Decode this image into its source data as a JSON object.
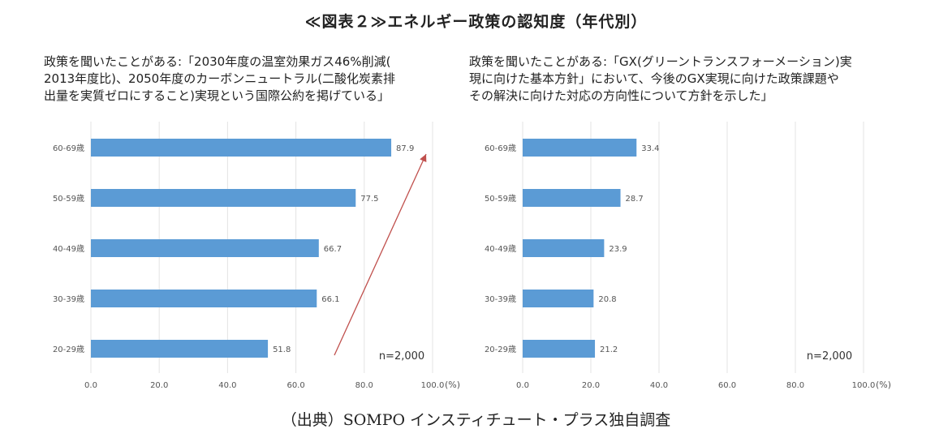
{
  "figure_title": "≪図表２≫エネルギー政策の認知度（年代別）",
  "source": "（出典）SOMPO インスティチュート・プラス独自調査",
  "colors": {
    "bar": "#5b9bd5",
    "grid": "#e3e3e3",
    "axis_text": "#555555",
    "arrow": "#c0504d"
  },
  "chart_data": [
    {
      "type": "bar",
      "orientation": "horizontal",
      "title": "政策を聞いたことがある:「2030年度の温室効果ガス46%削減(\n2013年度比)、2050年度のカーボンニュートラル(二酸化炭素排\n出量を実質ゼロにすること)実現という国際公約を掲げている」",
      "categories": [
        "60-69歳",
        "50-59歳",
        "40-49歳",
        "30-39歳",
        "20-29歳"
      ],
      "values": [
        87.9,
        77.5,
        66.7,
        66.1,
        51.8
      ],
      "value_labels": [
        "87.9",
        "77.5",
        "66.7",
        "66.1",
        "51.8"
      ],
      "xlim": [
        0,
        100
      ],
      "xticks": [
        0,
        20,
        40,
        60,
        80,
        100
      ],
      "xtick_labels": [
        "0.0",
        "20.0",
        "40.0",
        "60.0",
        "80.0",
        "100.0"
      ],
      "xunit": "(%)",
      "note": "n=2,000",
      "grid": true,
      "annotation": "upward-arrow"
    },
    {
      "type": "bar",
      "orientation": "horizontal",
      "title": "政策を聞いたことがある:「GX(グリーントランスフォーメーション)実\n現に向けた基本方針」において、今後のGX実現に向けた政策課題や\nその解決に向けた対応の方向性について方針を示した」",
      "categories": [
        "60-69歳",
        "50-59歳",
        "40-49歳",
        "30-39歳",
        "20-29歳"
      ],
      "values": [
        33.4,
        28.7,
        23.9,
        20.8,
        21.2
      ],
      "value_labels": [
        "33.4",
        "28.7",
        "23.9",
        "20.8",
        "21.2"
      ],
      "xlim": [
        0,
        100
      ],
      "xticks": [
        0,
        20,
        40,
        60,
        80,
        100
      ],
      "xtick_labels": [
        "0.0",
        "20.0",
        "40.0",
        "60.0",
        "80.0",
        "100.0"
      ],
      "xunit": "(%)",
      "note": "n=2,000",
      "grid": true
    }
  ]
}
